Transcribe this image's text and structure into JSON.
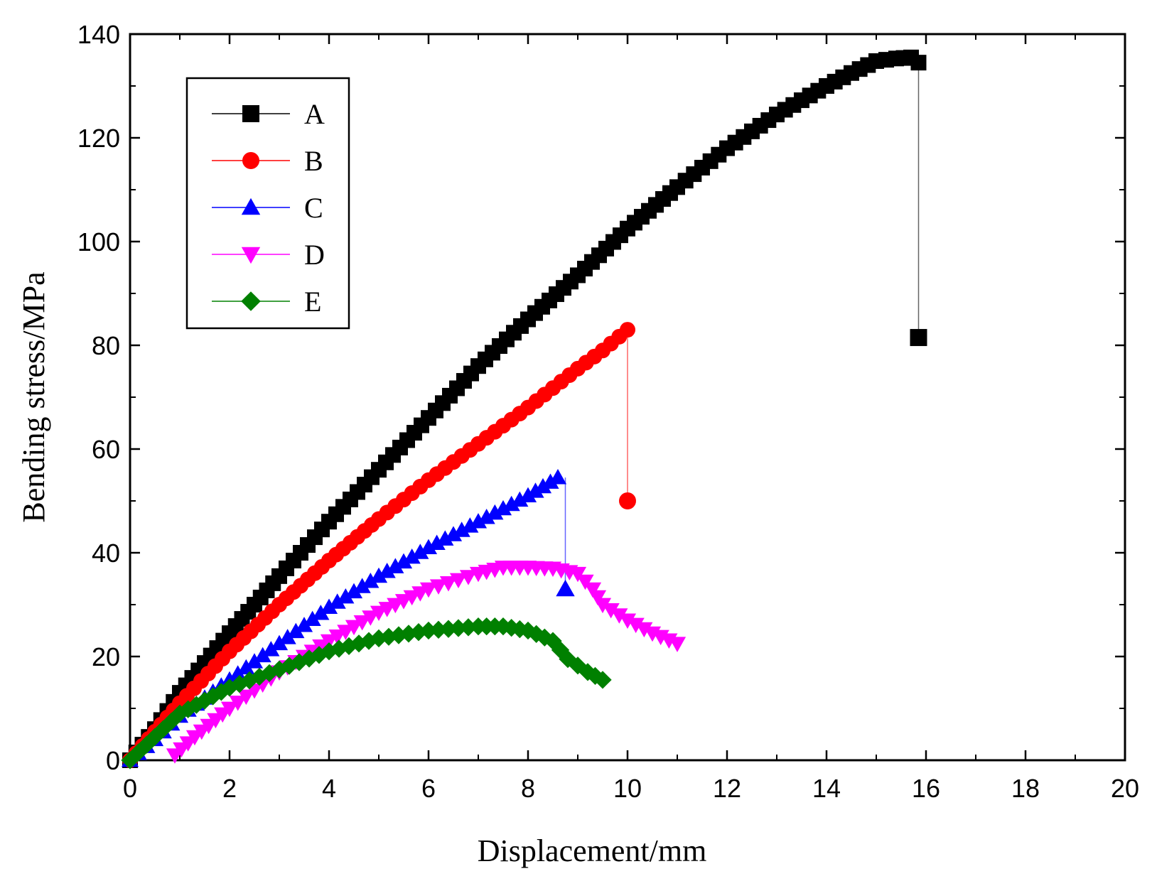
{
  "chart_data": {
    "type": "line",
    "title": "",
    "xlabel": "Displacement/mm",
    "ylabel": "Bending stress/MPa",
    "xlim": [
      0,
      20
    ],
    "ylim": [
      0,
      140
    ],
    "xticks": [
      0,
      2,
      4,
      6,
      8,
      10,
      12,
      14,
      16,
      18,
      20
    ],
    "yticks": [
      0,
      20,
      40,
      60,
      80,
      100,
      120,
      140
    ],
    "grid": false,
    "legend_position": "top-left",
    "series": [
      {
        "name": "A",
        "marker": "square",
        "color": "#000000",
        "points": [
          [
            0,
            0
          ],
          [
            0.5,
            6
          ],
          [
            1,
            13
          ],
          [
            2,
            24.5
          ],
          [
            3,
            35.5
          ],
          [
            4,
            46
          ],
          [
            5,
            56
          ],
          [
            6,
            66
          ],
          [
            7,
            76
          ],
          [
            8,
            85
          ],
          [
            9,
            93.5
          ],
          [
            10,
            102.5
          ],
          [
            11,
            110.5
          ],
          [
            12,
            118
          ],
          [
            13,
            124.5
          ],
          [
            14,
            130
          ],
          [
            14.5,
            132.5
          ],
          [
            15,
            134.8
          ],
          [
            15.4,
            135.3
          ],
          [
            15.7,
            135.5
          ],
          [
            15.85,
            134.5
          ]
        ],
        "drop": [
          [
            15.85,
            134.5
          ],
          [
            15.85,
            81.5
          ]
        ]
      },
      {
        "name": "B",
        "marker": "circle",
        "color": "#ff0000",
        "points": [
          [
            0,
            0
          ],
          [
            0.5,
            5.5
          ],
          [
            1,
            11
          ],
          [
            2,
            21
          ],
          [
            3,
            30
          ],
          [
            4,
            38.5
          ],
          [
            5,
            46.5
          ],
          [
            6,
            54
          ],
          [
            7,
            61
          ],
          [
            8,
            68
          ],
          [
            9,
            75.5
          ],
          [
            9.5,
            79
          ],
          [
            10,
            83
          ]
        ],
        "drop": [
          [
            10,
            83
          ],
          [
            10,
            50
          ]
        ]
      },
      {
        "name": "C",
        "marker": "triangle-up",
        "color": "#0000ff",
        "points": [
          [
            0,
            0
          ],
          [
            0.5,
            4
          ],
          [
            1,
            8.5
          ],
          [
            2,
            15.5
          ],
          [
            3,
            22.5
          ],
          [
            4,
            29.5
          ],
          [
            5,
            35.5
          ],
          [
            6,
            41
          ],
          [
            7,
            46
          ],
          [
            8,
            51
          ],
          [
            8.6,
            54.5
          ]
        ],
        "drop": [
          [
            8.75,
            54.5
          ],
          [
            8.75,
            33
          ]
        ]
      },
      {
        "name": "D",
        "marker": "triangle-down",
        "color": "#ff00ff",
        "points": [
          [
            0.9,
            1
          ],
          [
            1.3,
            4.5
          ],
          [
            2,
            10
          ],
          [
            3,
            17
          ],
          [
            4,
            23
          ],
          [
            5,
            28.5
          ],
          [
            6,
            33
          ],
          [
            7,
            36
          ],
          [
            7.5,
            37.2
          ],
          [
            8,
            37.2
          ],
          [
            8.5,
            37
          ],
          [
            9,
            36
          ],
          [
            9.3,
            33
          ],
          [
            9.5,
            30
          ],
          [
            10,
            27
          ],
          [
            10.5,
            24.5
          ],
          [
            11,
            22.5
          ]
        ],
        "drop": []
      },
      {
        "name": "E",
        "marker": "diamond",
        "color": "#008000",
        "points": [
          [
            0,
            0
          ],
          [
            0.5,
            4.5
          ],
          [
            1,
            9
          ],
          [
            2,
            14
          ],
          [
            3,
            17.5
          ],
          [
            4,
            21
          ],
          [
            5,
            23.5
          ],
          [
            6,
            25
          ],
          [
            7,
            25.8
          ],
          [
            7.5,
            25.8
          ],
          [
            8,
            25
          ],
          [
            8.5,
            23
          ],
          [
            8.8,
            19.5
          ],
          [
            9.2,
            17
          ],
          [
            9.5,
            15.5
          ]
        ],
        "drop": []
      }
    ]
  }
}
